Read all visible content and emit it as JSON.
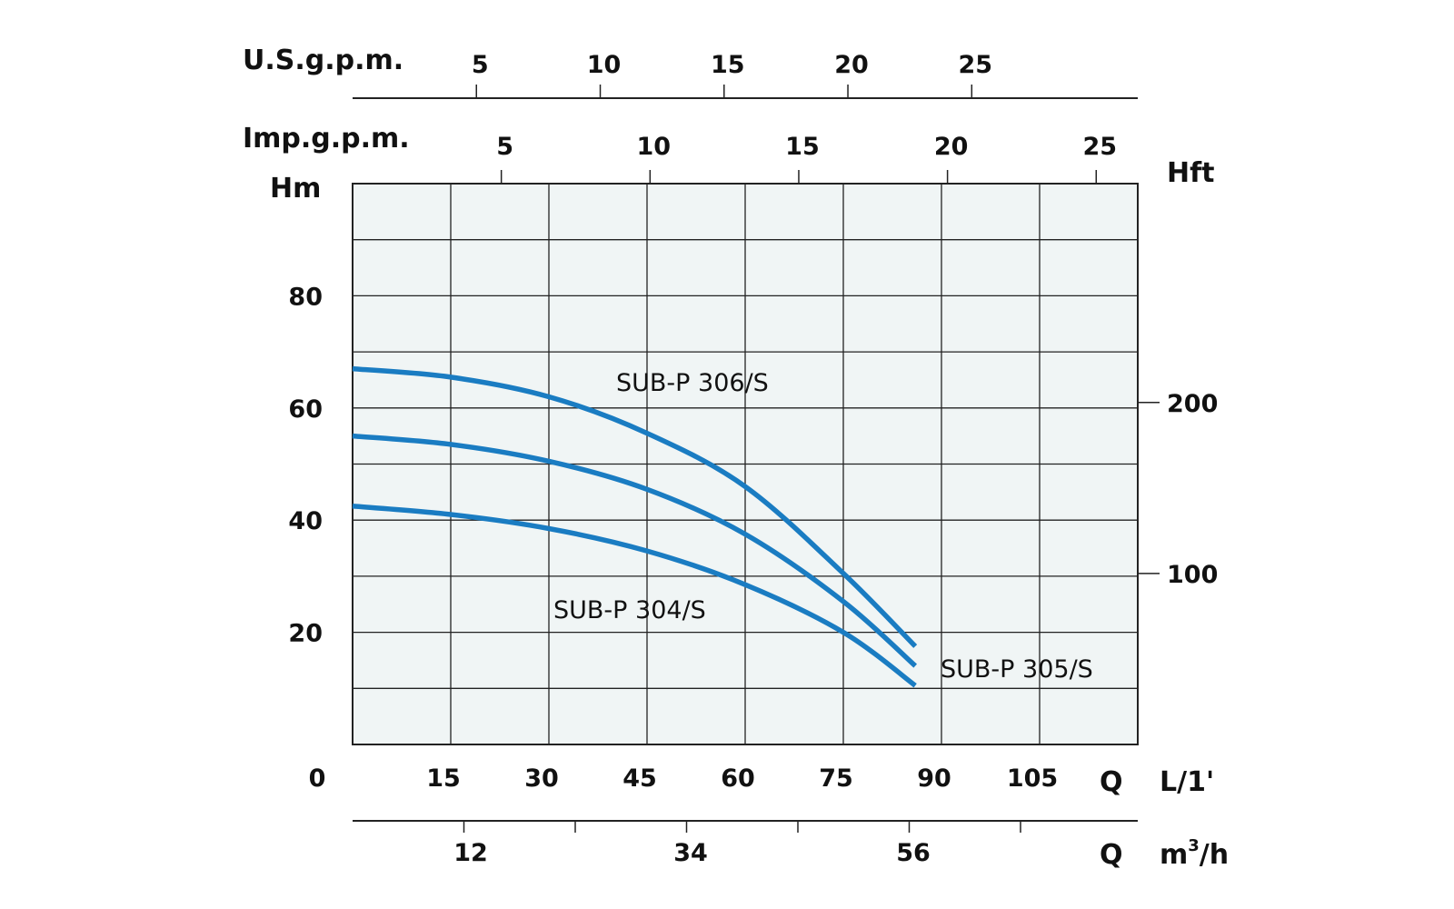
{
  "chart_data": {
    "type": "line",
    "background_color": "#f0f5f5",
    "line_color": "#1a7cc2",
    "grid": true,
    "x_axis": {
      "unit_label": "L/1'",
      "q_label": "Q",
      "ticks": [
        0,
        15,
        30,
        45,
        60,
        75,
        90,
        105
      ],
      "tick_labels": [
        "0",
        "15",
        "30",
        "45",
        "60",
        "75",
        "90",
        "105"
      ],
      "xlim": [
        0,
        120
      ]
    },
    "y_axis_left": {
      "unit_label": "Hm",
      "ticks": [
        20,
        40,
        60,
        80
      ],
      "tick_labels": [
        "20",
        "40",
        "60",
        "80"
      ],
      "ylim": [
        0,
        100
      ]
    },
    "y_axis_right": {
      "unit_label": "Hft",
      "ticks": [
        100,
        200
      ],
      "tick_labels": [
        "100",
        "200"
      ]
    },
    "us_gpm_axis": {
      "unit_label": "U.S.g.p.m.",
      "ticks": [
        5,
        10,
        15,
        20,
        25
      ],
      "tick_labels": [
        "5",
        "10",
        "15",
        "20",
        "25"
      ]
    },
    "imp_gpm_axis": {
      "unit_label": "Imp.g.p.m.",
      "ticks": [
        5,
        10,
        15,
        20,
        25
      ],
      "tick_labels": [
        "5",
        "10",
        "15",
        "20",
        "25"
      ]
    },
    "m3h_axis": {
      "unit_label": "m",
      "unit_superscript": "3",
      "unit_suffix": "/h",
      "q_label": "Q",
      "tick_labels": [
        "12",
        "34",
        "56"
      ]
    },
    "series": [
      {
        "name": "SUB-P 306/S",
        "x": [
          0,
          15,
          30,
          45,
          60,
          75,
          86
        ],
        "y": [
          67,
          65.5,
          62,
          55.5,
          46,
          30.5,
          17.5
        ]
      },
      {
        "name": "SUB-P 305/S",
        "x": [
          0,
          15,
          30,
          45,
          60,
          75,
          86
        ],
        "y": [
          55,
          53.5,
          50.5,
          45.5,
          37.5,
          25.5,
          14
        ]
      },
      {
        "name": "SUB-P 304/S",
        "x": [
          0,
          15,
          30,
          45,
          60,
          75,
          86
        ],
        "y": [
          42.5,
          41,
          38.5,
          34.5,
          28.5,
          20,
          10.5
        ]
      }
    ]
  }
}
